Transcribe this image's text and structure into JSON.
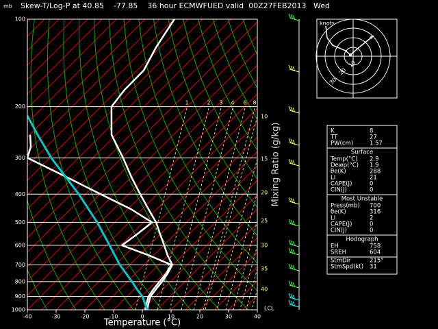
{
  "chart_data": {
    "type": "skewt",
    "title": "Skew-T/Log-P at 40.85    -77.85    36 hour ECMWFUED valid  00Z27FEB2013   Wed",
    "y_label": "mb",
    "x_label": "Temperature (°C)",
    "y2_label": "Mixing Ratio (g/kg)",
    "xlim": [
      -40,
      40
    ],
    "xticks": [
      -40,
      -30,
      -20,
      -10,
      0,
      10,
      20,
      30,
      40
    ],
    "ylim": [
      100,
      1000
    ],
    "yticks": [
      100,
      200,
      300,
      400,
      500,
      600,
      700,
      800,
      900,
      1000
    ],
    "log_y": true,
    "grid": true,
    "series": [
      {
        "color": "#ffffff",
        "pressure": [
          1000,
          950,
          900,
          850,
          800,
          750,
          700,
          650,
          600,
          550,
          500,
          450,
          400,
          350,
          300,
          250,
          200,
          175,
          150,
          125,
          100
        ],
        "values": [
          1.7,
          -0.1,
          -1.8,
          -2.4,
          -2.9,
          -3.8,
          -5.2,
          -10.1,
          -14.8,
          -20,
          -25.6,
          -32.9,
          -40.9,
          -49.8,
          -59.5,
          -71.5,
          -81.3,
          -82.6,
          -82.7,
          -86.4,
          -89.8
        ]
      },
      {
        "color": "#ffffff",
        "pressure": [
          1000,
          950,
          900,
          850,
          800,
          750,
          700,
          650,
          600,
          550,
          500,
          450,
          400,
          350,
          300,
          275,
          250
        ],
        "values": [
          1.0,
          -0.8,
          -2.5,
          -3.3,
          -3.8,
          -4.3,
          -5.6,
          -16.5,
          -29.5,
          -28.1,
          -27,
          -39,
          -54.7,
          -72.2,
          -92.8,
          -95.4,
          -99.8
        ]
      },
      {
        "color": "#00c8c8",
        "pressure": [
          1000,
          900,
          850,
          800,
          700,
          600,
          500,
          400,
          300,
          250,
          215
        ],
        "values": [
          1.7,
          -4.6,
          -9,
          -13.4,
          -23.5,
          -33.8,
          -46.1,
          -62.3,
          -84.5,
          -97.2,
          -107.4
        ]
      }
    ],
    "mixing_ratio_top_labels": [
      1,
      2,
      3,
      4,
      6,
      8
    ],
    "mixing_ratio_side_labels": [
      10,
      15,
      20,
      25,
      30,
      35,
      40
    ],
    "lcl_label": "LCL"
  },
  "hodograph": {
    "unit_label": "knots",
    "ring_labels": [
      10,
      20,
      30
    ]
  },
  "indices": {
    "rows": [
      [
        "K",
        "8"
      ],
      [
        "TT",
        "27"
      ],
      [
        "PW(cm)",
        "1.57"
      ]
    ],
    "sections": [
      {
        "title": "Surface",
        "rows": [
          [
            "Temp(°C)",
            "2.9"
          ],
          [
            "Dewp(°C)",
            "1.9"
          ],
          [
            "θe(K)",
            "288"
          ],
          [
            "LI",
            "21"
          ],
          [
            "CAPE(J)",
            "0"
          ],
          [
            "CIN(J)",
            "0"
          ]
        ]
      },
      {
        "title": "Most Unstable",
        "rows": [
          [
            "Press(mb)",
            "700"
          ],
          [
            "θe(K)",
            "316"
          ],
          [
            "LI",
            "2"
          ],
          [
            "CAPE(J)",
            "0"
          ],
          [
            "CIN(J)",
            "0"
          ]
        ]
      },
      {
        "title": "Hodograph",
        "rows": [
          [
            "EH",
            "758"
          ],
          [
            "SREH",
            "604"
          ]
        ]
      },
      {
        "title": null,
        "rows": [
          [
            "StmDir",
            "215°"
          ],
          [
            "StmSpd(kt)",
            "31"
          ]
        ]
      }
    ]
  }
}
